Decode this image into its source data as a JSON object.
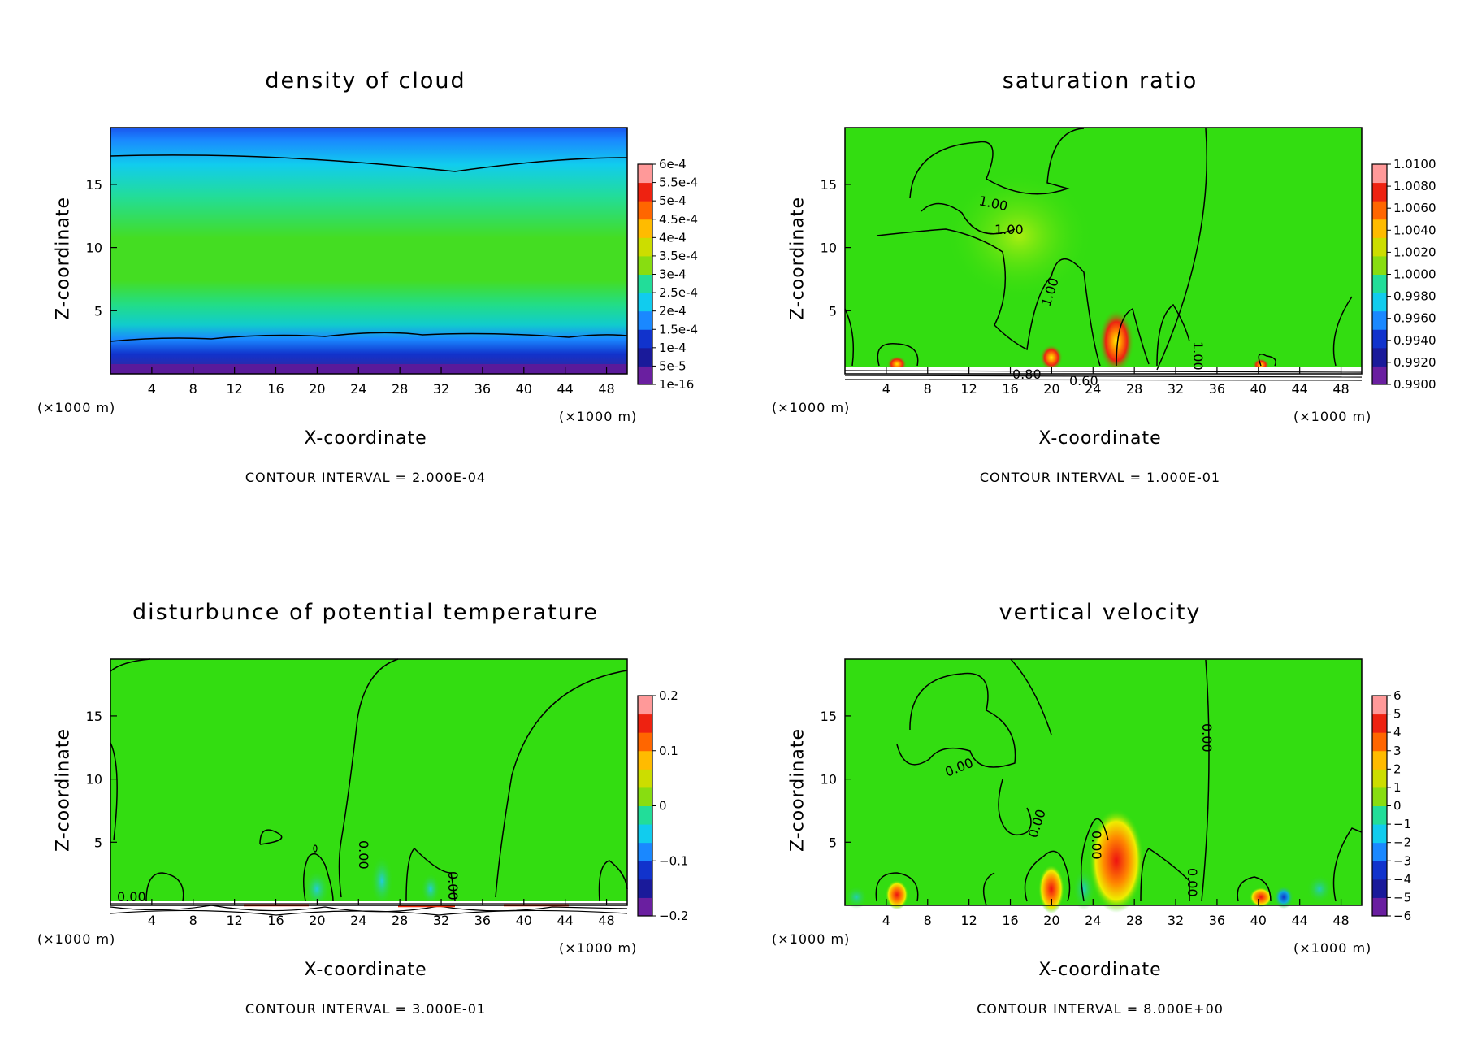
{
  "chart_data": [
    {
      "type": "heatmap",
      "title": "density of cloud",
      "xlabel": "X-coordinate",
      "ylabel": "Z-coordinate",
      "x_units": "(×1000 m)",
      "x_ticks": [
        "4",
        "8",
        "12",
        "16",
        "20",
        "24",
        "28",
        "32",
        "36",
        "40",
        "44",
        "48"
      ],
      "y_ticks": [
        "5",
        "10",
        "15"
      ],
      "xlim": [
        0,
        50
      ],
      "ylim": [
        0,
        19.5
      ],
      "colorbar_labels": [
        "1e-16",
        "5e-5",
        "1e-4",
        "1.5e-4",
        "2e-4",
        "2.5e-4",
        "3e-4",
        "3.5e-4",
        "4e-4",
        "4.5e-4",
        "5e-4",
        "5.5e-4",
        "6e-4"
      ],
      "contour_interval": "CONTOUR INTERVAL = 2.000E-04",
      "contour_labels": []
    },
    {
      "type": "heatmap",
      "title": "saturation ratio",
      "xlabel": "X-coordinate",
      "ylabel": "Z-coordinate",
      "x_units": "(×1000 m)",
      "x_ticks": [
        "4",
        "8",
        "12",
        "16",
        "20",
        "24",
        "28",
        "32",
        "36",
        "40",
        "44",
        "48"
      ],
      "y_ticks": [
        "5",
        "10",
        "15"
      ],
      "xlim": [
        0,
        50
      ],
      "ylim": [
        0,
        19.5
      ],
      "colorbar_labels": [
        "0.9900",
        "0.9920",
        "0.9940",
        "0.9960",
        "0.9980",
        "1.0000",
        "1.0020",
        "1.0040",
        "1.0060",
        "1.0080",
        "1.0100"
      ],
      "contour_interval": "CONTOUR INTERVAL = 1.000E-01",
      "contour_labels": [
        "1.00",
        "1.00",
        "1.00",
        "1.00",
        "0.80",
        "0.60"
      ]
    },
    {
      "type": "heatmap",
      "title": "disturbunce of potential temperature",
      "xlabel": "X-coordinate",
      "ylabel": "Z-coordinate",
      "x_units": "(×1000 m)",
      "x_ticks": [
        "4",
        "8",
        "12",
        "16",
        "20",
        "24",
        "28",
        "32",
        "36",
        "40",
        "44",
        "48"
      ],
      "y_ticks": [
        "5",
        "10",
        "15"
      ],
      "xlim": [
        0,
        50
      ],
      "ylim": [
        0,
        19.5
      ],
      "colorbar_labels": [
        "−0.2",
        "−0.1",
        "0",
        "0.1",
        "0.2"
      ],
      "contour_interval": "CONTOUR INTERVAL = 3.000E-01",
      "contour_labels": [
        "0.00",
        "0.00",
        "0.00"
      ]
    },
    {
      "type": "heatmap",
      "title": "vertical velocity",
      "xlabel": "X-coordinate",
      "ylabel": "Z-coordinate",
      "x_units": "(×1000 m)",
      "x_ticks": [
        "4",
        "8",
        "12",
        "16",
        "20",
        "24",
        "28",
        "32",
        "36",
        "40",
        "44",
        "48"
      ],
      "y_ticks": [
        "5",
        "10",
        "15"
      ],
      "xlim": [
        0,
        50
      ],
      "ylim": [
        0,
        19.5
      ],
      "colorbar_labels": [
        "−6",
        "−5",
        "−4",
        "−3",
        "−2",
        "−1",
        "0",
        "1",
        "2",
        "3",
        "4",
        "5",
        "6"
      ],
      "contour_interval": "CONTOUR INTERVAL = 8.000E+00",
      "contour_labels": [
        "0.00",
        "0.00",
        "0.00",
        "0.00",
        "0.00"
      ]
    }
  ],
  "colors": {
    "field_green": "#33dd11",
    "cyan": "#00dddd",
    "blue": "#0066ff",
    "navy": "#1a1a9a",
    "purple": "#6a1fa0",
    "red": "#ee2211",
    "orange": "#ff9900",
    "yellow": "#eeee00",
    "pink": "#ff9999"
  }
}
